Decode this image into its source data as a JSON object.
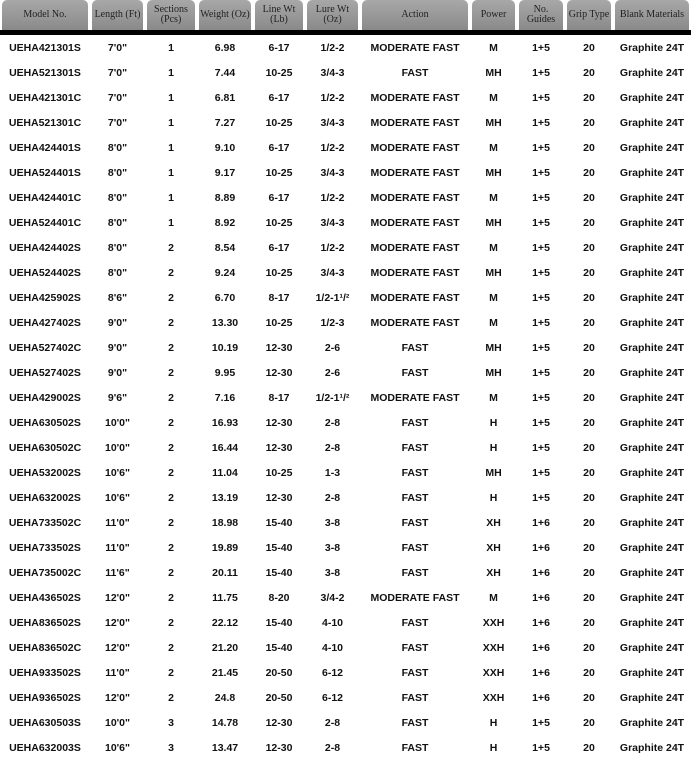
{
  "headers": [
    "Model No.",
    "Length (Ft)",
    "Sections (Pcs)",
    "Weight (Oz)",
    "Line Wt (Lb)",
    "Lure Wt (Oz)",
    "Action",
    "Power",
    "No. Guides",
    "Grip Type",
    "Blank Materials"
  ],
  "rows": [
    [
      "UEHA421301S",
      "7'0\"",
      "1",
      "6.98",
      "6-17",
      "1/2-2",
      "MODERATE FAST",
      "M",
      "1+5",
      "20",
      "Graphite 24T"
    ],
    [
      "UEHA521301S",
      "7'0\"",
      "1",
      "7.44",
      "10-25",
      "3/4-3",
      "FAST",
      "MH",
      "1+5",
      "20",
      "Graphite 24T"
    ],
    [
      "UEHA421301C",
      "7'0\"",
      "1",
      "6.81",
      "6-17",
      "1/2-2",
      "MODERATE FAST",
      "M",
      "1+5",
      "20",
      "Graphite 24T"
    ],
    [
      "UEHA521301C",
      "7'0\"",
      "1",
      "7.27",
      "10-25",
      "3/4-3",
      "MODERATE FAST",
      "MH",
      "1+5",
      "20",
      "Graphite 24T"
    ],
    [
      "UEHA424401S",
      "8'0\"",
      "1",
      "9.10",
      "6-17",
      "1/2-2",
      "MODERATE FAST",
      "M",
      "1+5",
      "20",
      "Graphite 24T"
    ],
    [
      "UEHA524401S",
      "8'0\"",
      "1",
      "9.17",
      "10-25",
      "3/4-3",
      "MODERATE FAST",
      "MH",
      "1+5",
      "20",
      "Graphite 24T"
    ],
    [
      "UEHA424401C",
      "8'0\"",
      "1",
      "8.89",
      "6-17",
      "1/2-2",
      "MODERATE FAST",
      "M",
      "1+5",
      "20",
      "Graphite 24T"
    ],
    [
      "UEHA524401C",
      "8'0\"",
      "1",
      "8.92",
      "10-25",
      "3/4-3",
      "MODERATE FAST",
      "MH",
      "1+5",
      "20",
      "Graphite 24T"
    ],
    [
      "UEHA424402S",
      "8'0\"",
      "2",
      "8.54",
      "6-17",
      "1/2-2",
      "MODERATE FAST",
      "M",
      "1+5",
      "20",
      "Graphite 24T"
    ],
    [
      "UEHA524402S",
      "8'0\"",
      "2",
      "9.24",
      "10-25",
      "3/4-3",
      "MODERATE FAST",
      "MH",
      "1+5",
      "20",
      "Graphite 24T"
    ],
    [
      "UEHA425902S",
      "8'6\"",
      "2",
      "6.70",
      "8-17",
      "1/2-1¹/²",
      "MODERATE FAST",
      "M",
      "1+5",
      "20",
      "Graphite 24T"
    ],
    [
      "UEHA427402S",
      "9'0\"",
      "2",
      "13.30",
      "10-25",
      "1/2-3",
      "MODERATE FAST",
      "M",
      "1+5",
      "20",
      "Graphite 24T"
    ],
    [
      "UEHA527402C",
      "9'0\"",
      "2",
      "10.19",
      "12-30",
      "2-6",
      "FAST",
      "MH",
      "1+5",
      "20",
      "Graphite 24T"
    ],
    [
      "UEHA527402S",
      "9'0\"",
      "2",
      "9.95",
      "12-30",
      "2-6",
      "FAST",
      "MH",
      "1+5",
      "20",
      "Graphite 24T"
    ],
    [
      "UEHA429002S",
      "9'6\"",
      "2",
      "7.16",
      "8-17",
      "1/2-1¹/²",
      "MODERATE FAST",
      "M",
      "1+5",
      "20",
      "Graphite 24T"
    ],
    [
      "UEHA630502S",
      "10'0\"",
      "2",
      "16.93",
      "12-30",
      "2-8",
      "FAST",
      "H",
      "1+5",
      "20",
      "Graphite 24T"
    ],
    [
      "UEHA630502C",
      "10'0\"",
      "2",
      "16.44",
      "12-30",
      "2-8",
      "FAST",
      "H",
      "1+5",
      "20",
      "Graphite 24T"
    ],
    [
      "UEHA532002S",
      "10'6\"",
      "2",
      "11.04",
      "10-25",
      "1-3",
      "FAST",
      "MH",
      "1+5",
      "20",
      "Graphite 24T"
    ],
    [
      "UEHA632002S",
      "10'6\"",
      "2",
      "13.19",
      "12-30",
      "2-8",
      "FAST",
      "H",
      "1+5",
      "20",
      "Graphite 24T"
    ],
    [
      "UEHA733502C",
      "11'0\"",
      "2",
      "18.98",
      "15-40",
      "3-8",
      "FAST",
      "XH",
      "1+6",
      "20",
      "Graphite 24T"
    ],
    [
      "UEHA733502S",
      "11'0\"",
      "2",
      "19.89",
      "15-40",
      "3-8",
      "FAST",
      "XH",
      "1+6",
      "20",
      "Graphite 24T"
    ],
    [
      "UEHA735002C",
      "11'6\"",
      "2",
      "20.11",
      "15-40",
      "3-8",
      "FAST",
      "XH",
      "1+6",
      "20",
      "Graphite 24T"
    ],
    [
      "UEHA436502S",
      "12'0\"",
      "2",
      "11.75",
      "8-20",
      "3/4-2",
      "MODERATE FAST",
      "M",
      "1+6",
      "20",
      "Graphite 24T"
    ],
    [
      "UEHA836502S",
      "12'0\"",
      "2",
      "22.12",
      "15-40",
      "4-10",
      "FAST",
      "XXH",
      "1+6",
      "20",
      "Graphite 24T"
    ],
    [
      "UEHA836502C",
      "12'0\"",
      "2",
      "21.20",
      "15-40",
      "4-10",
      "FAST",
      "XXH",
      "1+6",
      "20",
      "Graphite 24T"
    ],
    [
      "UEHA933502S",
      "11'0\"",
      "2",
      "21.45",
      "20-50",
      "6-12",
      "FAST",
      "XXH",
      "1+6",
      "20",
      "Graphite 24T"
    ],
    [
      "UEHA936502S",
      "12'0\"",
      "2",
      "24.8",
      "20-50",
      "6-12",
      "FAST",
      "XXH",
      "1+6",
      "20",
      "Graphite 24T"
    ],
    [
      "UEHA630503S",
      "10'0\"",
      "3",
      "14.78",
      "12-30",
      "2-8",
      "FAST",
      "H",
      "1+5",
      "20",
      "Graphite 24T"
    ],
    [
      "UEHA632003S",
      "10'6\"",
      "3",
      "13.47",
      "12-30",
      "2-8",
      "FAST",
      "H",
      "1+5",
      "20",
      "Graphite 24T"
    ]
  ]
}
